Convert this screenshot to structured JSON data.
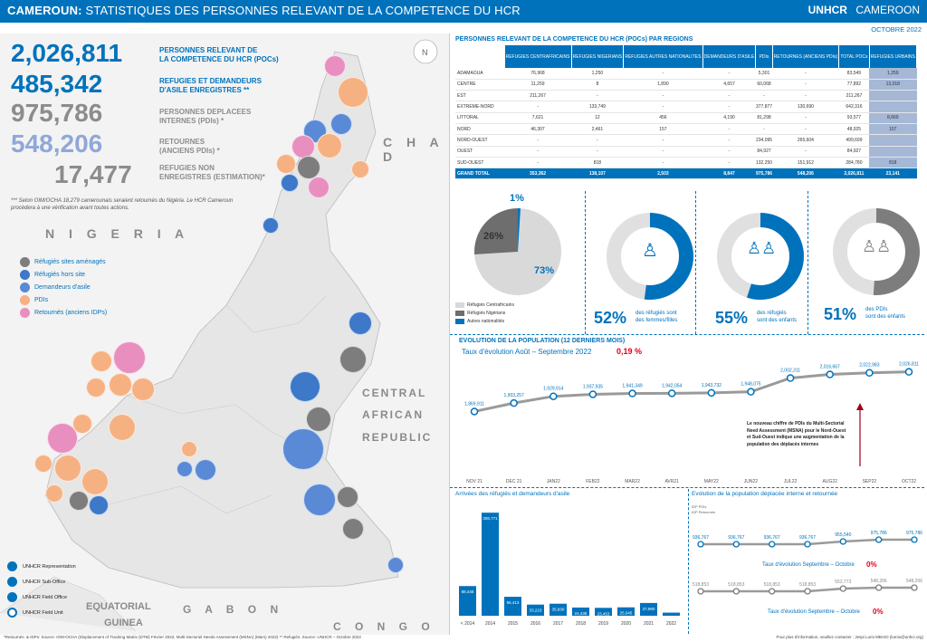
{
  "header": {
    "title_bold": "CAMEROUN:",
    "title_rest": "STATISTIQUES DES PERSONNES RELEVANT DE LA COMPETENCE DU HCR",
    "logo_unhcr": "UNHCR",
    "logo_country": "CAMEROON",
    "date": "OCTOBRE 2022"
  },
  "key_figures": [
    {
      "value": "2,026,811",
      "label1": "PERSONNES RELEVANT DE",
      "label2": "LA COMPETENCE DU HCR (POCs)",
      "color": "#0072bc"
    },
    {
      "value": "485,342",
      "label1": "REFUGIES ET DEMANDEURS",
      "label2": "D'ASILE ENREGISTRES **",
      "color": "#0072bc"
    },
    {
      "value": "975,786",
      "label1": "PERSONNES DEPLACEES",
      "label2": "INTERNES (PDIs) *",
      "color": "#8c8c8c"
    },
    {
      "value": "548,206",
      "label1": "RETOURNES",
      "label2": "(ANCIENS PDIs) *",
      "color": "#8fa8d8"
    },
    {
      "value": "17,477",
      "label1": "REFUGIES NON",
      "label2": "ENREGISTRES (ESTIMATION)*",
      "color": "#8c8c8c"
    }
  ],
  "map_note": "*** Selon OIM/OCHA 18,279 camerounais seraient retournés du Nigéria. Le HCR Cameroun procèdera à une vérification avant toutes actions.",
  "map_labels": {
    "nigeria": "N I G E R I A",
    "chad": "C H A D",
    "car1": "CENTRAL",
    "car2": "AFRICAN",
    "car3": "REPUBLIC",
    "gabon": "G A B O N",
    "congo": "C O N G O",
    "eqguinea1": "EQUATORIAL",
    "eqguinea2": "GUINEA"
  },
  "map_legend": [
    {
      "label": "Réfugiés sites aménagés",
      "color": "#7d7d7d"
    },
    {
      "label": "Réfugiés hors site",
      "color": "#3d78c9"
    },
    {
      "label": "Demandeurs d'asile",
      "color": "#5a8ad6"
    },
    {
      "label": "PDIs",
      "color": "#f6b183"
    },
    {
      "label": "Retournés (anciens IDPs)",
      "color": "#e88fc0"
    }
  ],
  "office_legend": [
    "UNHCR Representation",
    "UNHCR Sub-Office",
    "UNHCR Field Office",
    "UNHCR Field Unit"
  ],
  "table": {
    "title": "PERSONNES RELEVANT DE LA COMPETENCE DU HCR (POCs) PAR REGIONS",
    "headers": [
      "",
      "REFUGIES CENTRAFRICAINS",
      "REFUGIES NIGERIANS",
      "REFUGIES AUTRES NATIONALITES",
      "DEMANDEURS D'ASILE",
      "PDIs",
      "RETOURNES (ANCIENS PDIs)",
      "TOTAL POCs",
      "REFUGIES URBAINS"
    ],
    "rows": [
      [
        "ADAMAOUA",
        "76,968",
        "1,250",
        "-",
        "-",
        "5,301",
        "-",
        "83,549",
        "1,259"
      ],
      [
        "CENTRE",
        "11,259",
        "8",
        "1,890",
        "4,657",
        "60,068",
        "-",
        "77,892",
        "13,018"
      ],
      [
        "EST",
        "211,267",
        "-",
        "-",
        "-",
        "-",
        "-",
        "211,267",
        ""
      ],
      [
        "EXTREME-NORD",
        "-",
        "133,749",
        "-",
        "-",
        "377,877",
        "130,690",
        "642,316",
        ""
      ],
      [
        "LITTORAL",
        "7,621",
        "12",
        "456",
        "4,190",
        "81,298",
        "-",
        "93,577",
        "8,669"
      ],
      [
        "NORD",
        "46,307",
        "2,461",
        "157",
        "-",
        "-",
        "-",
        "48,925",
        "157"
      ],
      [
        "NORD-OUEST",
        "-",
        "-",
        "-",
        "-",
        "234,095",
        "265,604",
        "499,699",
        ""
      ],
      [
        "OUEST",
        "-",
        "-",
        "-",
        "-",
        "84,927",
        "-",
        "84,927",
        ""
      ],
      [
        "SUD-OUEST",
        "-",
        "818",
        "-",
        "-",
        "132,250",
        "151,912",
        "284,780",
        "818"
      ]
    ],
    "total": [
      "GRAND TOTAL",
      "353,362",
      "138,107",
      "2,503",
      "8,847",
      "975,786",
      "548,206",
      "2,026,811",
      "23,141"
    ]
  },
  "pie": {
    "pct_small": "1%",
    "pct_mid": "26%",
    "pct_big": "73%",
    "legend": [
      {
        "label": "Réfugiés Centrafricains",
        "color": "#d9d9d9"
      },
      {
        "label": "Réfugiés Nigérians",
        "color": "#6e6e6e"
      },
      {
        "label": "Autres nationalités",
        "color": "#0072bc"
      }
    ]
  },
  "donuts": [
    {
      "pct": "52%",
      "label1": "des réfugiés sont",
      "label2": "des femmes/filles",
      "value": 52,
      "color": "#0072bc"
    },
    {
      "pct": "55%",
      "label1": "des réfugiés",
      "label2": "sont des enfants",
      "value": 55,
      "color": "#0072bc"
    },
    {
      "pct": "51%",
      "label1": "des PDIs",
      "label2": "sont des enfants",
      "value": 51,
      "color": "#7d7d7d"
    }
  ],
  "evolution": {
    "title": "EVOLUTION DE LA POPULATION (12 DERNIERS MOIS)",
    "rate_label": "Taux d'évolution Août – Septembre 2022",
    "rate_value": "0,19 %",
    "months": [
      "NOV 21",
      "DEC 21",
      "JAN22",
      "FEB22",
      "MAR22",
      "AVR21",
      "MAY22",
      "JUN22",
      "JUL22",
      "AUG22",
      "SEP22",
      "OCT22"
    ],
    "value_labels": [
      "1,869,911",
      "1,903,257",
      "1,929,914",
      "1,937,935",
      "1,941,349",
      "1,942,054",
      "1,943,732",
      "1,948,075",
      "2,002,311",
      "2,016,667",
      "2,022,983",
      "2,026,811"
    ],
    "values": [
      1869911,
      1903257,
      1929914,
      1937935,
      1941349,
      1942054,
      1943732,
      1948075,
      2002311,
      2016667,
      2022983,
      2026811
    ],
    "annotation": "Le nouveau chiffre de PDIs du Multi-Sectorial Need Assessment (MSNA) pour le Nord-Ouest et Sud-Ouest indique une augmentation de la population des déplacés internes"
  },
  "arrivals": {
    "title": "Arrivées des réfugiés et demandeurs d'asile",
    "categories": [
      "< 2014",
      "2014",
      "2015",
      "2016",
      "2017",
      "2018",
      "2019",
      "2020",
      "2021",
      "2022"
    ],
    "value_labels": [
      "88,346",
      "306,771",
      "56,413",
      "33,223",
      "35,830",
      "24,438",
      "23,453",
      "25,045",
      "37,980",
      "9,241"
    ],
    "values": [
      88346,
      306771,
      56413,
      33223,
      35830,
      24438,
      23453,
      25045,
      37980,
      9241
    ]
  },
  "idp_evolution": {
    "title": "Evolution de la population déplacée interne et retournée",
    "legend1": "IDP PDIs",
    "legend2": "IDP Retournés",
    "idp_labels": [
      "936,767",
      "936,767",
      "936,767",
      "936,767",
      "955,540",
      "975,786",
      "975,786"
    ],
    "ret_labels": [
      "518,853",
      "518,853",
      "518,853",
      "518,853",
      "552,773",
      "548,206",
      "548,206"
    ],
    "rate1_label": "Taux d'évolution Septembre – Octobre",
    "rate1_value": "0%",
    "rate2_label": "Taux d'évolution Septembre – Octobre",
    "rate2_value": "0%"
  },
  "footer": {
    "left": "*Retournés: & IDPs: Source: IOM-OCHA (Displacement of Tracking Matrix (DTM) Février 2022; Multi-Sectoriel Needs Assessment (MSNA) (Mars) 2022)   ** Refugiés: Source: UNHCR – Octobre 2022",
    "right": "Pour plus d'information, veuillez contacter : Jespi Lumi MBAIO (lumio@unhcr.org)"
  }
}
